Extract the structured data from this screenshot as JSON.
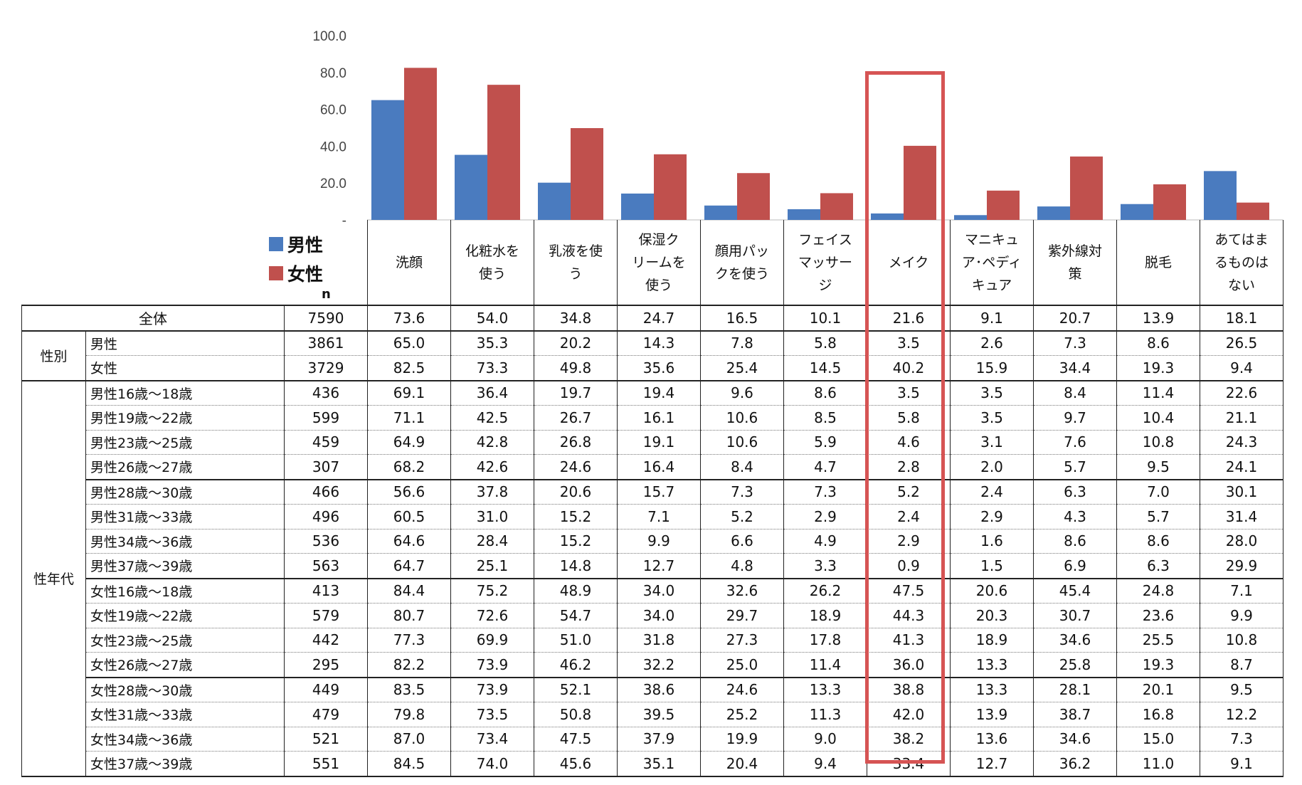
{
  "chart_data": {
    "type": "bar",
    "yticks": [
      "100.0",
      "80.0",
      "60.0",
      "40.0",
      "20.0",
      "-"
    ],
    "ylim": [
      0,
      100
    ],
    "categories": [
      "洗顔",
      "化粧水を使う",
      "乳液を使う",
      "保湿クリームを使う",
      "顔用パックを使う",
      "フェイスマッサージ",
      "メイク",
      "マニキュア・ペディキュア",
      "紫外線対策",
      "脱毛",
      "あてはまるものはない"
    ],
    "series": [
      {
        "name": "男性",
        "color": "#4a7bbf",
        "values": [
          65.0,
          35.3,
          20.2,
          14.3,
          7.8,
          5.8,
          3.5,
          2.6,
          7.3,
          8.6,
          26.5
        ]
      },
      {
        "name": "女性",
        "color": "#c0504d",
        "values": [
          82.5,
          73.3,
          49.8,
          35.6,
          25.4,
          14.5,
          40.2,
          15.9,
          34.4,
          19.3,
          9.4
        ]
      }
    ],
    "highlight_category": "メイク",
    "highlight_color": "#d65454"
  },
  "legend": [
    {
      "label": "男性",
      "color": "#4a7bbf"
    },
    {
      "label": "女性",
      "color": "#c0504d"
    }
  ],
  "table": {
    "n_label": "n",
    "headers": [
      "洗顔",
      "化粧水を<br>使う",
      "乳液を使<br>う",
      "保湿ク<br>リームを<br>使う",
      "顔用パッ<br>クを使う",
      "フェイス<br>マッサー<br>ジ",
      "メイク",
      "マニキュ<br>ア･ペディ<br>キュア",
      "紫外線対<br>策",
      "脱毛",
      "あてはま<br>るものは<br>ない"
    ],
    "total": {
      "label": "全体",
      "n": "7590",
      "values": [
        "73.6",
        "54.0",
        "34.8",
        "24.7",
        "16.5",
        "10.1",
        "21.6",
        "9.1",
        "20.7",
        "13.9",
        "18.1"
      ]
    },
    "groups": [
      {
        "label": "性別",
        "rows": [
          {
            "label": "男性",
            "n": "3861",
            "values": [
              "65.0",
              "35.3",
              "20.2",
              "14.3",
              "7.8",
              "5.8",
              "3.5",
              "2.6",
              "7.3",
              "8.6",
              "26.5"
            ]
          },
          {
            "label": "女性",
            "n": "3729",
            "values": [
              "82.5",
              "73.3",
              "49.8",
              "35.6",
              "25.4",
              "14.5",
              "40.2",
              "15.9",
              "34.4",
              "19.3",
              "9.4"
            ]
          }
        ]
      },
      {
        "label": "性年代",
        "rows": [
          {
            "label": "男性16歳～18歳",
            "n": "436",
            "values": [
              "69.1",
              "36.4",
              "19.7",
              "19.4",
              "9.6",
              "8.6",
              "3.5",
              "3.5",
              "8.4",
              "11.4",
              "22.6"
            ]
          },
          {
            "label": "男性19歳～22歳",
            "n": "599",
            "values": [
              "71.1",
              "42.5",
              "26.7",
              "16.1",
              "10.6",
              "8.5",
              "5.8",
              "3.5",
              "9.7",
              "10.4",
              "21.1"
            ]
          },
          {
            "label": "男性23歳～25歳",
            "n": "459",
            "values": [
              "64.9",
              "42.8",
              "26.8",
              "19.1",
              "10.6",
              "5.9",
              "4.6",
              "3.1",
              "7.6",
              "10.8",
              "24.3"
            ]
          },
          {
            "label": "男性26歳～27歳",
            "n": "307",
            "values": [
              "68.2",
              "42.6",
              "24.6",
              "16.4",
              "8.4",
              "4.7",
              "2.8",
              "2.0",
              "5.7",
              "9.5",
              "24.1"
            ]
          },
          {
            "label": "男性28歳～30歳",
            "n": "466",
            "values": [
              "56.6",
              "37.8",
              "20.6",
              "15.7",
              "7.3",
              "7.3",
              "5.2",
              "2.4",
              "6.3",
              "7.0",
              "30.1"
            ]
          },
          {
            "label": "男性31歳～33歳",
            "n": "496",
            "values": [
              "60.5",
              "31.0",
              "15.2",
              "7.1",
              "5.2",
              "2.9",
              "2.4",
              "2.9",
              "4.3",
              "5.7",
              "31.4"
            ]
          },
          {
            "label": "男性34歳～36歳",
            "n": "536",
            "values": [
              "64.6",
              "28.4",
              "15.2",
              "9.9",
              "6.6",
              "4.9",
              "2.9",
              "1.6",
              "8.6",
              "8.6",
              "28.0"
            ]
          },
          {
            "label": "男性37歳～39歳",
            "n": "563",
            "values": [
              "64.7",
              "25.1",
              "14.8",
              "12.7",
              "4.8",
              "3.3",
              "0.9",
              "1.5",
              "6.9",
              "6.3",
              "29.9"
            ]
          },
          {
            "label": "女性16歳～18歳",
            "n": "413",
            "values": [
              "84.4",
              "75.2",
              "48.9",
              "34.0",
              "32.6",
              "26.2",
              "47.5",
              "20.6",
              "45.4",
              "24.8",
              "7.1"
            ]
          },
          {
            "label": "女性19歳～22歳",
            "n": "579",
            "values": [
              "80.7",
              "72.6",
              "54.7",
              "34.0",
              "29.7",
              "18.9",
              "44.3",
              "20.3",
              "30.7",
              "23.6",
              "9.9"
            ]
          },
          {
            "label": "女性23歳～25歳",
            "n": "442",
            "values": [
              "77.3",
              "69.9",
              "51.0",
              "31.8",
              "27.3",
              "17.8",
              "41.3",
              "18.9",
              "34.6",
              "25.5",
              "10.8"
            ]
          },
          {
            "label": "女性26歳～27歳",
            "n": "295",
            "values": [
              "82.2",
              "73.9",
              "46.2",
              "32.2",
              "25.0",
              "11.4",
              "36.0",
              "13.3",
              "25.8",
              "19.3",
              "8.7"
            ]
          },
          {
            "label": "女性28歳～30歳",
            "n": "449",
            "values": [
              "83.5",
              "73.9",
              "52.1",
              "38.6",
              "24.6",
              "13.3",
              "38.8",
              "13.3",
              "28.1",
              "20.1",
              "9.5"
            ]
          },
          {
            "label": "女性31歳～33歳",
            "n": "479",
            "values": [
              "79.8",
              "73.5",
              "50.8",
              "39.5",
              "25.2",
              "11.3",
              "42.0",
              "13.9",
              "38.7",
              "16.8",
              "12.2"
            ]
          },
          {
            "label": "女性34歳～36歳",
            "n": "521",
            "values": [
              "87.0",
              "73.4",
              "47.5",
              "37.9",
              "19.9",
              "9.0",
              "38.2",
              "13.6",
              "34.6",
              "15.0",
              "7.3"
            ]
          },
          {
            "label": "女性37歳～39歳",
            "n": "551",
            "values": [
              "84.5",
              "74.0",
              "45.6",
              "35.1",
              "20.4",
              "9.4",
              "33.4",
              "12.7",
              "36.2",
              "11.0",
              "9.1"
            ]
          }
        ]
      }
    ]
  }
}
